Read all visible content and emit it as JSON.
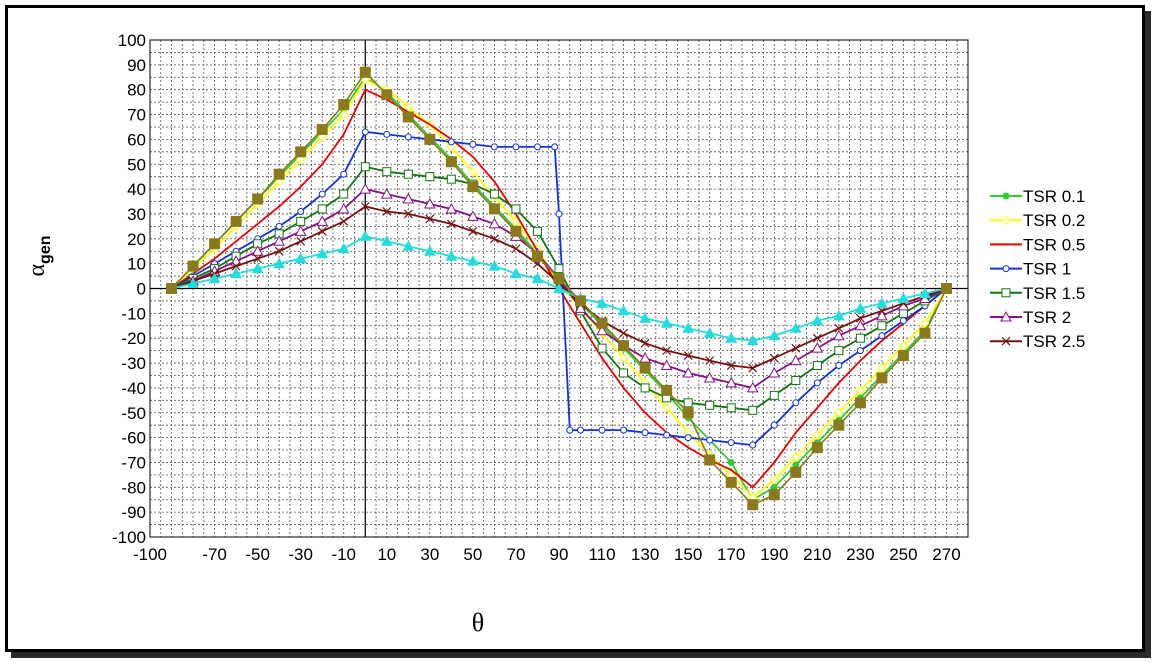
{
  "chart_data": {
    "type": "line",
    "xlabel": "θ",
    "ylabel_main": "α",
    "ylabel_sub": "gen",
    "xlim": [
      -100,
      280
    ],
    "ylim": [
      -100,
      100
    ],
    "x_ticks": [
      -100,
      -70,
      -50,
      -30,
      -10,
      10,
      30,
      50,
      70,
      90,
      110,
      130,
      150,
      170,
      190,
      210,
      230,
      250,
      270
    ],
    "y_ticks": [
      100,
      90,
      80,
      70,
      60,
      50,
      40,
      30,
      20,
      10,
      0,
      -10,
      -20,
      -30,
      -40,
      -50,
      -60,
      -70,
      -80,
      -90,
      -100
    ],
    "legend_position": "right",
    "grid": true,
    "series": [
      {
        "name": "TSR 0.1",
        "color": "#33cc33",
        "marker": "dot",
        "x": [
          -90,
          -80,
          -70,
          -60,
          -50,
          -40,
          -30,
          -20,
          -10,
          0,
          10,
          20,
          30,
          40,
          50,
          60,
          70,
          80,
          90,
          100,
          110,
          120,
          130,
          140,
          150,
          160,
          170,
          180,
          190,
          200,
          210,
          220,
          230,
          240,
          250,
          260,
          270
        ],
        "y": [
          0,
          9,
          18,
          27,
          36,
          45,
          54,
          63,
          72,
          85,
          79,
          70,
          61,
          52,
          42,
          33,
          24,
          14,
          2,
          -6,
          -15,
          -24,
          -33,
          -42,
          -52,
          -61,
          -70,
          -85,
          -80,
          -71,
          -62,
          -53,
          -44,
          -35,
          -26,
          -17,
          0
        ]
      },
      {
        "name": "TSR 0.2",
        "color": "#ffff00",
        "marker": "diamond",
        "x": [
          -90,
          -80,
          -70,
          -60,
          -50,
          -40,
          -30,
          -20,
          -10,
          0,
          10,
          20,
          30,
          40,
          50,
          60,
          70,
          80,
          90,
          100,
          110,
          120,
          130,
          140,
          150,
          160,
          170,
          180,
          190,
          200,
          210,
          220,
          230,
          240,
          250,
          260,
          270
        ],
        "y": [
          0,
          8,
          16,
          25,
          34,
          43,
          52,
          61,
          70,
          84,
          80,
          73,
          66,
          57,
          47,
          37,
          27,
          16,
          2,
          -8,
          -18,
          -28,
          -38,
          -48,
          -58,
          -67,
          -75,
          -84,
          -77,
          -68,
          -59,
          -50,
          -41,
          -32,
          -23,
          -14,
          0
        ]
      },
      {
        "name": "TSR 0.5",
        "color": "#ee0000",
        "marker": "none",
        "x": [
          -90,
          -80,
          -70,
          -60,
          -50,
          -40,
          -30,
          -20,
          -10,
          0,
          10,
          20,
          30,
          40,
          50,
          60,
          70,
          80,
          90,
          100,
          110,
          120,
          130,
          140,
          150,
          160,
          170,
          180,
          190,
          200,
          210,
          220,
          230,
          240,
          250,
          260,
          270
        ],
        "y": [
          0,
          6,
          12,
          19,
          26,
          33,
          41,
          50,
          62,
          80,
          76,
          71,
          66,
          60,
          53,
          43,
          30,
          15,
          0,
          -14,
          -28,
          -40,
          -50,
          -58,
          -64,
          -69,
          -73,
          -80,
          -70,
          -58,
          -48,
          -38,
          -29,
          -21,
          -14,
          -7,
          0
        ]
      },
      {
        "name": "TSR 1",
        "color": "#1133dd",
        "marker": "circle",
        "x": [
          -90,
          -80,
          -70,
          -60,
          -50,
          -40,
          -30,
          -20,
          -10,
          0,
          10,
          20,
          30,
          40,
          50,
          60,
          70,
          80,
          88,
          90,
          95,
          100,
          110,
          120,
          130,
          140,
          150,
          160,
          170,
          180,
          190,
          200,
          210,
          220,
          230,
          240,
          250,
          260,
          270
        ],
        "y": [
          0,
          5,
          10,
          15,
          20,
          25,
          31,
          38,
          46,
          63,
          62,
          61,
          60,
          59,
          58,
          57,
          57,
          57,
          57,
          30,
          -57,
          -57,
          -57,
          -57,
          -58,
          -59,
          -60,
          -61,
          -62,
          -63,
          -55,
          -46,
          -38,
          -31,
          -25,
          -19,
          -13,
          -7,
          0
        ]
      },
      {
        "name": "TSR 1.5",
        "color": "#117711",
        "marker": "square",
        "x": [
          -90,
          -80,
          -70,
          -60,
          -50,
          -40,
          -30,
          -20,
          -10,
          0,
          10,
          20,
          30,
          40,
          50,
          60,
          70,
          80,
          90,
          100,
          110,
          120,
          130,
          140,
          150,
          160,
          170,
          180,
          190,
          200,
          210,
          220,
          230,
          240,
          250,
          260,
          270
        ],
        "y": [
          0,
          4,
          8,
          13,
          18,
          22,
          27,
          32,
          38,
          49,
          47,
          46,
          45,
          44,
          42,
          38,
          32,
          23,
          8,
          -9,
          -24,
          -34,
          -40,
          -44,
          -46,
          -47,
          -48,
          -49,
          -43,
          -37,
          -31,
          -25,
          -20,
          -15,
          -10,
          -5,
          0
        ]
      },
      {
        "name": "TSR 2",
        "color": "#881188",
        "marker": "triangle",
        "x": [
          -90,
          -80,
          -70,
          -60,
          -50,
          -40,
          -30,
          -20,
          -10,
          0,
          10,
          20,
          30,
          40,
          50,
          60,
          70,
          80,
          90,
          100,
          110,
          120,
          130,
          140,
          150,
          160,
          170,
          180,
          190,
          200,
          210,
          220,
          230,
          240,
          250,
          260,
          270
        ],
        "y": [
          0,
          3,
          7,
          11,
          15,
          19,
          23,
          27,
          32,
          40,
          38,
          36,
          34,
          32,
          29,
          26,
          21,
          14,
          4,
          -8,
          -17,
          -23,
          -28,
          -31,
          -34,
          -36,
          -38,
          -40,
          -34,
          -29,
          -24,
          -19,
          -15,
          -11,
          -7,
          -4,
          0
        ]
      },
      {
        "name": "TSR 2.5",
        "color": "#771111",
        "marker": "cross",
        "x": [
          -90,
          -80,
          -70,
          -60,
          -50,
          -40,
          -30,
          -20,
          -10,
          0,
          10,
          20,
          30,
          40,
          50,
          60,
          70,
          80,
          90,
          100,
          110,
          120,
          130,
          140,
          150,
          160,
          170,
          180,
          190,
          200,
          210,
          220,
          230,
          240,
          250,
          260,
          270
        ],
        "y": [
          0,
          3,
          6,
          9,
          12,
          15,
          19,
          23,
          27,
          33,
          31,
          30,
          28,
          26,
          23,
          20,
          16,
          10,
          2,
          -6,
          -13,
          -18,
          -22,
          -25,
          -27,
          -29,
          -31,
          -32,
          -28,
          -24,
          -20,
          -16,
          -12,
          -9,
          -6,
          -3,
          0
        ]
      },
      {
        "name": "",
        "color": "#22dddd",
        "marker": "triangle",
        "x": [
          -90,
          -80,
          -70,
          -60,
          -50,
          -40,
          -30,
          -20,
          -10,
          0,
          10,
          20,
          30,
          40,
          50,
          60,
          70,
          80,
          90,
          100,
          110,
          120,
          130,
          140,
          150,
          160,
          170,
          180,
          190,
          200,
          210,
          220,
          230,
          240,
          250,
          260,
          270
        ],
        "y": [
          0,
          2,
          4,
          6,
          8,
          10,
          12,
          14,
          16,
          21,
          19,
          17,
          15,
          13,
          11,
          9,
          6,
          4,
          0,
          -4,
          -6,
          -9,
          -12,
          -14,
          -16,
          -18,
          -20,
          -21,
          -19,
          -16,
          -13,
          -11,
          -8,
          -6,
          -4,
          -2,
          0
        ]
      },
      {
        "name": "",
        "color": "#8a7a1c",
        "marker": "bigsquare",
        "x": [
          -90,
          -80,
          -70,
          -60,
          -50,
          -40,
          -30,
          -20,
          -10,
          0,
          10,
          20,
          30,
          40,
          50,
          60,
          70,
          80,
          90,
          100,
          110,
          120,
          130,
          140,
          150,
          160,
          170,
          180,
          190,
          200,
          210,
          220,
          230,
          240,
          250,
          260,
          270
        ],
        "y": [
          0,
          9,
          18,
          27,
          36,
          46,
          55,
          64,
          74,
          87,
          78,
          69,
          60,
          51,
          41,
          32,
          23,
          13,
          4,
          -5,
          -14,
          -23,
          -32,
          -41,
          -50,
          -69,
          -78,
          -87,
          -83,
          -74,
          -64,
          -55,
          -46,
          -36,
          -27,
          -18,
          0
        ]
      }
    ]
  }
}
